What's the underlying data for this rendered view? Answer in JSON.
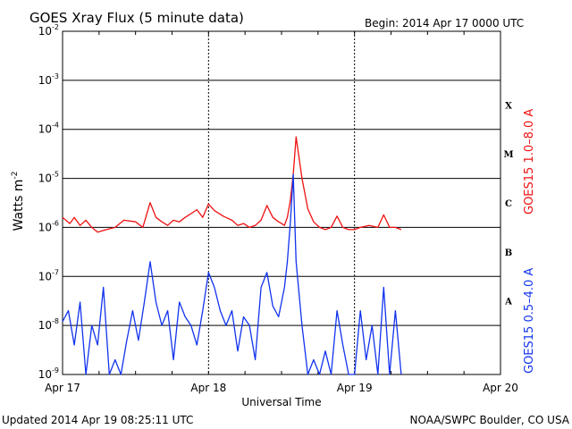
{
  "chart_data": {
    "type": "line",
    "title": "GOES Xray Flux (5 minute data)",
    "begin_label": "Begin:  2014 Apr 17 0000 UTC",
    "xlabel": "Universal Time",
    "ylabel": "Watts m",
    "ylabel_sup": "-2",
    "y_scale": "log",
    "ylim": [
      1e-09,
      0.01
    ],
    "xlim": [
      "2014-04-17 00:00",
      "2014-04-20 00:00"
    ],
    "x_ticks": [
      "Apr 17",
      "Apr 18",
      "Apr 19",
      "Apr 20"
    ],
    "y_ticks": [
      {
        "mant": "10",
        "exp": "-9"
      },
      {
        "mant": "10",
        "exp": "-8"
      },
      {
        "mant": "10",
        "exp": "-7"
      },
      {
        "mant": "10",
        "exp": "-6"
      },
      {
        "mant": "10",
        "exp": "-5"
      },
      {
        "mant": "10",
        "exp": "-4"
      },
      {
        "mant": "10",
        "exp": "-3"
      },
      {
        "mant": "10",
        "exp": "-2"
      }
    ],
    "flare_classes": [
      {
        "label": "A",
        "value": 1e-08
      },
      {
        "label": "B",
        "value": 1e-07
      },
      {
        "label": "C",
        "value": 1e-06
      },
      {
        "label": "M",
        "value": 1e-05
      },
      {
        "label": "X",
        "value": 0.0001
      }
    ],
    "grid": true,
    "legend_placement": "right-vertical",
    "series": [
      {
        "name": "GOES15 1.0–8.0 A",
        "color": "#ee1111",
        "x": [
          0.0,
          0.05,
          0.08,
          0.12,
          0.16,
          0.2,
          0.24,
          0.3,
          0.36,
          0.42,
          0.5,
          0.55,
          0.6,
          0.64,
          0.68,
          0.72,
          0.76,
          0.8,
          0.84,
          0.88,
          0.92,
          0.96,
          1.0,
          1.04,
          1.1,
          1.16,
          1.2,
          1.24,
          1.28,
          1.32,
          1.36,
          1.4,
          1.44,
          1.48,
          1.5,
          1.52,
          1.54,
          1.56,
          1.58,
          1.6,
          1.64,
          1.68,
          1.72,
          1.76,
          1.8,
          1.84,
          1.88,
          1.92,
          1.96,
          2.0,
          2.04,
          2.1,
          2.16,
          2.2,
          2.24,
          2.28,
          2.32
        ],
        "y": [
          1.6e-06,
          1.2e-06,
          1.6e-06,
          1.1e-06,
          1.4e-06,
          1e-06,
          8e-07,
          9e-07,
          1e-06,
          1.4e-06,
          1.3e-06,
          1e-06,
          3.2e-06,
          1.6e-06,
          1.3e-06,
          1.1e-06,
          1.4e-06,
          1.3e-06,
          1.6e-06,
          1.9e-06,
          2.3e-06,
          1.6e-06,
          3e-06,
          2.2e-06,
          1.7e-06,
          1.4e-06,
          1.1e-06,
          1.2e-06,
          1e-06,
          1.1e-06,
          1.4e-06,
          2.8e-06,
          1.6e-06,
          1.3e-06,
          1.2e-06,
          1.1e-06,
          1.6e-06,
          3.5e-06,
          1.2e-05,
          7e-05,
          1e-05,
          2.4e-06,
          1.3e-06,
          1e-06,
          9e-07,
          1e-06,
          1.7e-06,
          1e-06,
          9e-07,
          9e-07,
          1e-06,
          1.1e-06,
          1e-06,
          1.8e-06,
          1e-06,
          1e-06,
          9e-07
        ]
      },
      {
        "name": "GOES15 0.5–4.0 A",
        "color": "#1133ee",
        "x": [
          0.0,
          0.04,
          0.08,
          0.12,
          0.16,
          0.2,
          0.24,
          0.28,
          0.32,
          0.36,
          0.4,
          0.44,
          0.48,
          0.52,
          0.56,
          0.6,
          0.64,
          0.68,
          0.72,
          0.76,
          0.8,
          0.84,
          0.88,
          0.92,
          0.96,
          1.0,
          1.04,
          1.08,
          1.12,
          1.16,
          1.2,
          1.24,
          1.28,
          1.32,
          1.36,
          1.4,
          1.44,
          1.48,
          1.52,
          1.54,
          1.56,
          1.58,
          1.6,
          1.64,
          1.68,
          1.72,
          1.76,
          1.8,
          1.84,
          1.88,
          1.92,
          1.96,
          2.0,
          2.04,
          2.08,
          2.12,
          2.16,
          2.2,
          2.24,
          2.28,
          2.32
        ],
        "y": [
          1.2e-08,
          2e-08,
          4e-09,
          3e-08,
          1e-09,
          1e-08,
          4e-09,
          6e-08,
          1e-09,
          2e-09,
          1e-09,
          5e-09,
          2e-08,
          5e-09,
          3e-08,
          2e-07,
          3e-08,
          1e-08,
          2e-08,
          2e-09,
          3e-08,
          1.5e-08,
          1e-08,
          4e-09,
          2e-08,
          1.2e-07,
          6e-08,
          2e-08,
          1e-08,
          2e-08,
          3e-09,
          1.5e-08,
          1e-08,
          2e-09,
          6e-08,
          1.2e-07,
          2.5e-08,
          1.5e-08,
          6e-08,
          2e-07,
          1.2e-06,
          1.2e-05,
          2e-07,
          1e-08,
          1e-09,
          2e-09,
          1e-09,
          3e-09,
          1e-09,
          2e-08,
          4e-09,
          1e-09,
          1e-09,
          2e-08,
          2e-09,
          1e-08,
          1e-09,
          6e-08,
          1e-09,
          2e-08,
          1e-09
        ]
      }
    ]
  },
  "footer": {
    "updated": "Updated 2014 Apr 19 08:25:11 UTC",
    "credit": "NOAA/SWPC Boulder, CO USA"
  }
}
